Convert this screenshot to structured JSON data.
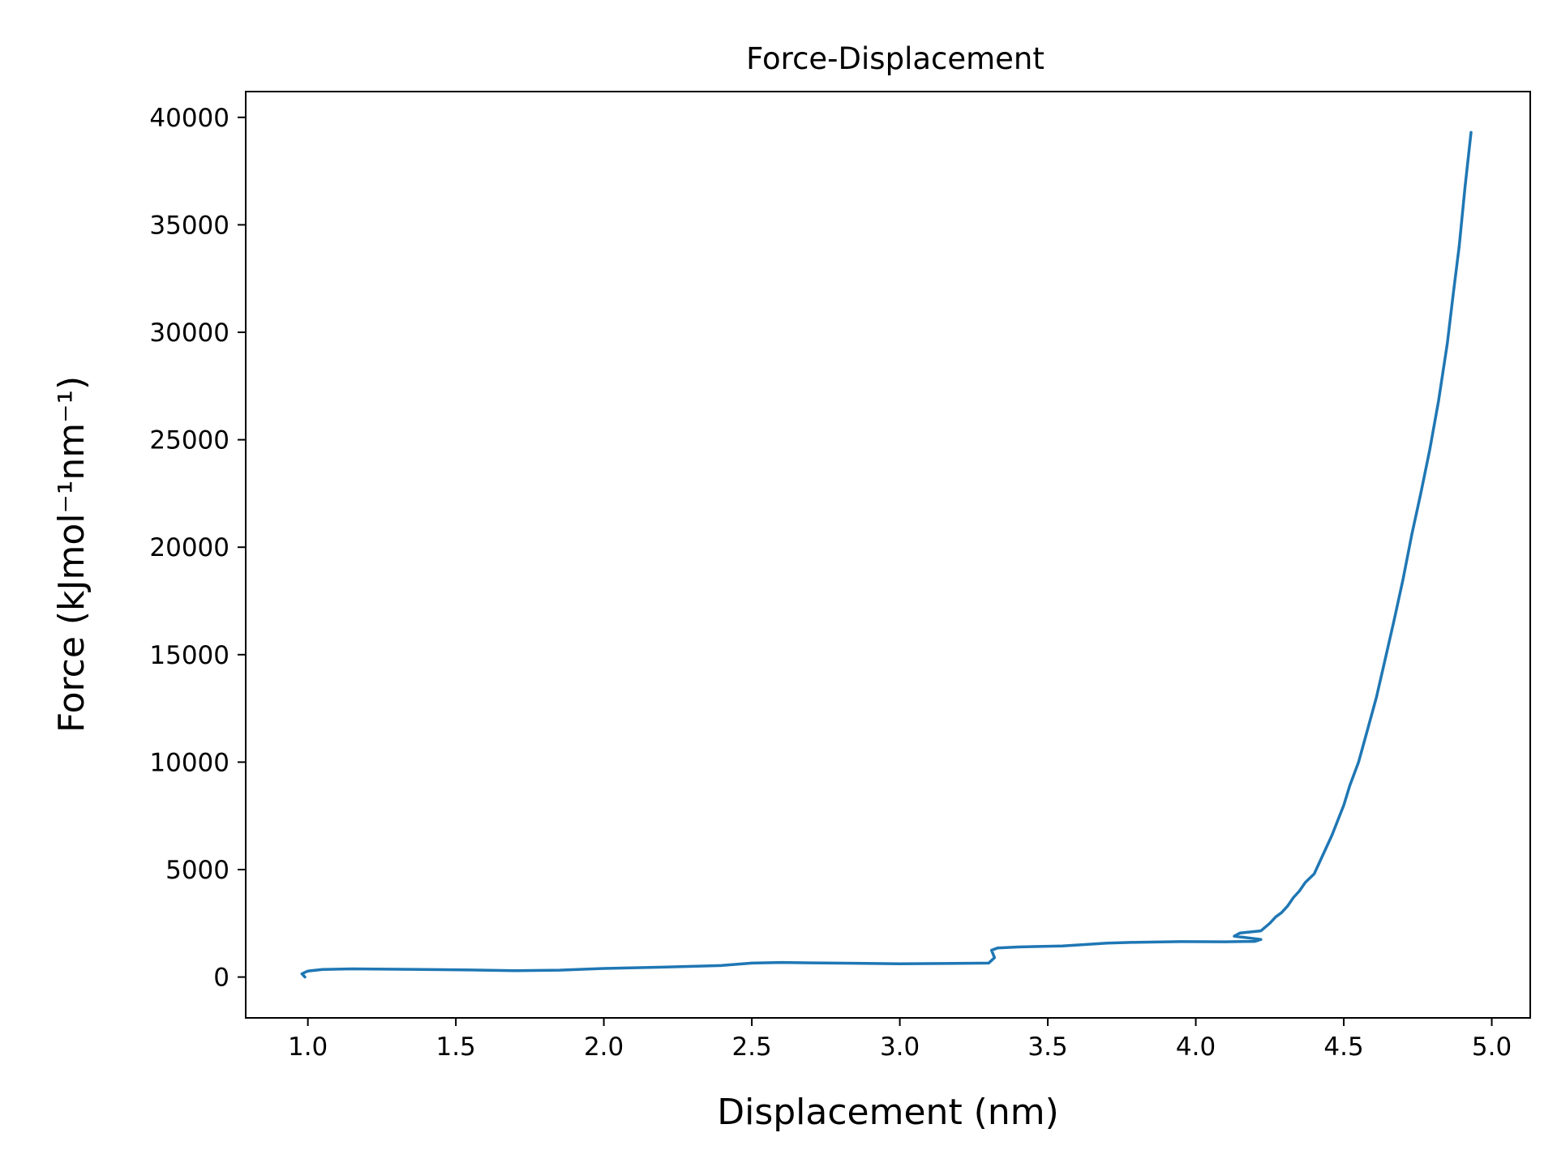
{
  "chart_data": {
    "type": "line",
    "title": "Force-Displacement",
    "xlabel": "Displacement (nm)",
    "ylabel": "Force (kJmol⁻¹nm⁻¹)",
    "xlim": [
      0.79,
      5.13
    ],
    "ylim": [
      -1900,
      41200
    ],
    "x_ticks": [
      1.0,
      1.5,
      2.0,
      2.5,
      3.0,
      3.5,
      4.0,
      4.5,
      5.0
    ],
    "x_tick_labels": [
      "1.0",
      "1.5",
      "2.0",
      "2.5",
      "3.0",
      "3.5",
      "4.0",
      "4.5",
      "5.0"
    ],
    "y_ticks": [
      0,
      5000,
      10000,
      15000,
      20000,
      25000,
      30000,
      35000,
      40000
    ],
    "y_tick_labels": [
      "0",
      "5000",
      "10000",
      "15000",
      "20000",
      "25000",
      "30000",
      "35000",
      "40000"
    ],
    "grid": false,
    "line_color": "#1f77b4",
    "series": [
      {
        "x": [
          0.99,
          0.98,
          1.0,
          1.05,
          1.15,
          1.35,
          1.55,
          1.7,
          1.85,
          2.0,
          2.2,
          2.4,
          2.5,
          2.6,
          2.7,
          2.85,
          3.0,
          3.15,
          3.3,
          3.32,
          3.31,
          3.33,
          3.4,
          3.55,
          3.7,
          3.8,
          3.95,
          4.1,
          4.2,
          4.22,
          4.13,
          4.15,
          4.22,
          4.25,
          4.27,
          4.29,
          4.31,
          4.33,
          4.35,
          4.37,
          4.4,
          4.42,
          4.44,
          4.46,
          4.48,
          4.5,
          4.52,
          4.55,
          4.58,
          4.61,
          4.64,
          4.67,
          4.7,
          4.73,
          4.76,
          4.79,
          4.82,
          4.85,
          4.87,
          4.89,
          4.91,
          4.93
        ],
        "y": [
          0,
          150,
          280,
          350,
          380,
          360,
          330,
          300,
          320,
          400,
          460,
          540,
          650,
          680,
          660,
          640,
          620,
          630,
          650,
          900,
          1250,
          1350,
          1400,
          1450,
          1580,
          1620,
          1650,
          1640,
          1660,
          1750,
          1900,
          2050,
          2150,
          2500,
          2800,
          3000,
          3300,
          3700,
          4000,
          4400,
          4800,
          5400,
          6000,
          6600,
          7300,
          8000,
          8900,
          10000,
          11500,
          13000,
          14800,
          16600,
          18500,
          20600,
          22500,
          24500,
          26800,
          29500,
          31800,
          34000,
          36800,
          39300
        ]
      }
    ]
  }
}
